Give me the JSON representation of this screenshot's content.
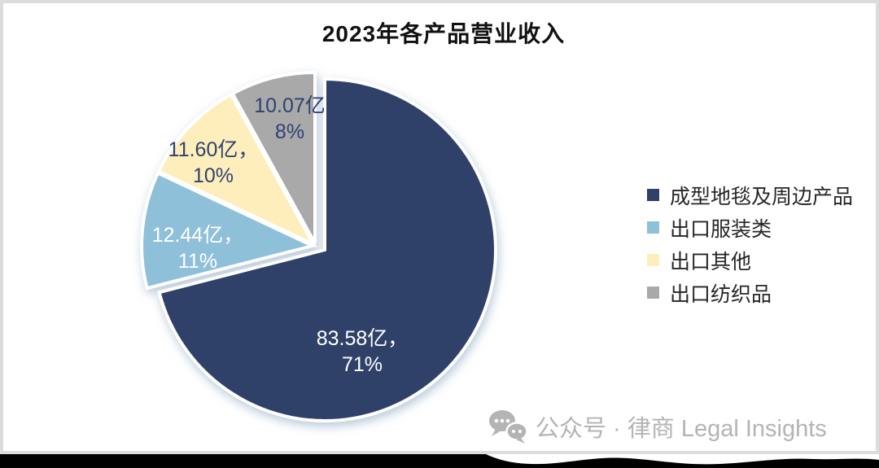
{
  "chart_data": {
    "type": "pie",
    "title": "2023年各产品营业收入",
    "legend_position": "right",
    "slices": [
      {
        "name": "成型地毯及周边产品",
        "value": 83.58,
        "pct": 71,
        "color": "#304169",
        "label_line1": "83.58亿，",
        "label_line2": "71%",
        "label_color": "#ffffff"
      },
      {
        "name": "出口服装类",
        "value": 12.44,
        "pct": 11,
        "color": "#8fc0da",
        "label_line1": "12.44亿，",
        "label_line2": "11%",
        "label_color": "#ffffff"
      },
      {
        "name": "出口其他",
        "value": 11.6,
        "pct": 10,
        "color": "#fdeebb",
        "label_line1": "11.60亿，",
        "label_line2": "10%",
        "label_color": "#2e4272"
      },
      {
        "name": "出口纺织品",
        "value": 10.07,
        "pct": 8,
        "color": "#a9a9a9",
        "label_line1": "10.07亿",
        "label_line2": "8%",
        "label_color": "#2e4272"
      }
    ]
  },
  "watermark": {
    "icon": "wechat-official-account-icon",
    "text": "公众号 · 律商 Legal Insights"
  }
}
